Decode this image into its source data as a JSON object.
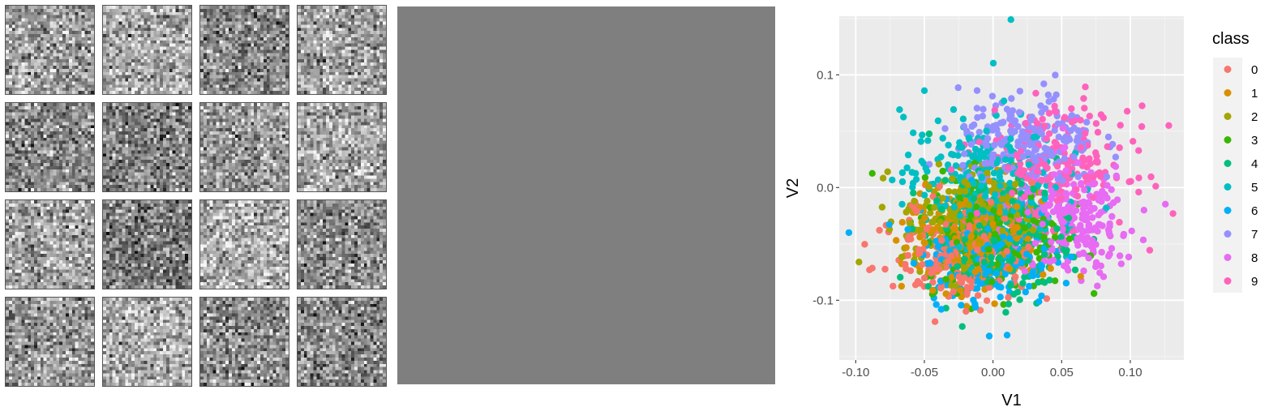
{
  "chart_data": {
    "type": "scatter",
    "xlabel": "V1",
    "ylabel": "V2",
    "xlim": [
      -0.112,
      0.139
    ],
    "ylim": [
      -0.153,
      0.152
    ],
    "x_ticks": [
      -0.1,
      -0.05,
      0.0,
      0.05,
      0.1
    ],
    "x_tick_labels": [
      "-0.10",
      "-0.05",
      "0.00",
      "0.05",
      "0.10"
    ],
    "y_ticks": [
      -0.1,
      0.0,
      0.1
    ],
    "y_tick_labels": [
      "-0.1",
      "0.0",
      "0.1"
    ],
    "grid": true,
    "legend": {
      "title": "class",
      "position": "right"
    },
    "classes": [
      {
        "name": "0",
        "color": "#F8766D",
        "center": [
          -0.02,
          -0.055
        ],
        "spread": [
          0.025,
          0.025
        ]
      },
      {
        "name": "1",
        "color": "#D89000",
        "center": [
          -0.012,
          -0.045
        ],
        "spread": [
          0.025,
          0.025
        ]
      },
      {
        "name": "2",
        "color": "#A3A500",
        "center": [
          -0.018,
          -0.03
        ],
        "spread": [
          0.024,
          0.024
        ]
      },
      {
        "name": "3",
        "color": "#39B600",
        "center": [
          0.0,
          -0.04
        ],
        "spread": [
          0.026,
          0.025
        ]
      },
      {
        "name": "4",
        "color": "#00BF7D",
        "center": [
          0.005,
          -0.045
        ],
        "spread": [
          0.026,
          0.026
        ]
      },
      {
        "name": "5",
        "color": "#00BFC4",
        "center": [
          -0.01,
          0.01
        ],
        "spread": [
          0.028,
          0.028
        ]
      },
      {
        "name": "6",
        "color": "#00B0F6",
        "center": [
          -0.005,
          -0.055
        ],
        "spread": [
          0.024,
          0.025
        ]
      },
      {
        "name": "7",
        "color": "#9590FF",
        "center": [
          0.025,
          0.04
        ],
        "spread": [
          0.025,
          0.022
        ]
      },
      {
        "name": "8",
        "color": "#E76BF3",
        "center": [
          0.06,
          -0.03
        ],
        "spread": [
          0.022,
          0.025
        ]
      },
      {
        "name": "9",
        "color": "#FF62BC",
        "center": [
          0.045,
          0.02
        ],
        "spread": [
          0.027,
          0.025
        ]
      }
    ],
    "points_per_class": 220,
    "outliers": [
      {
        "class": "5",
        "x": 0.013,
        "y": 0.149
      },
      {
        "class": "7",
        "x": 0.037,
        "y": 0.092
      },
      {
        "class": "9",
        "x": 0.128,
        "y": 0.055
      },
      {
        "class": "6",
        "x": -0.105,
        "y": -0.04
      },
      {
        "class": "0",
        "x": -0.09,
        "y": -0.073
      },
      {
        "class": "5",
        "x": -0.05,
        "y": 0.086
      }
    ]
  },
  "tile_grid": {
    "rows": 4,
    "cols": 4,
    "resolution": 28
  },
  "middle_panel": {
    "color": "#7f7f7f"
  }
}
